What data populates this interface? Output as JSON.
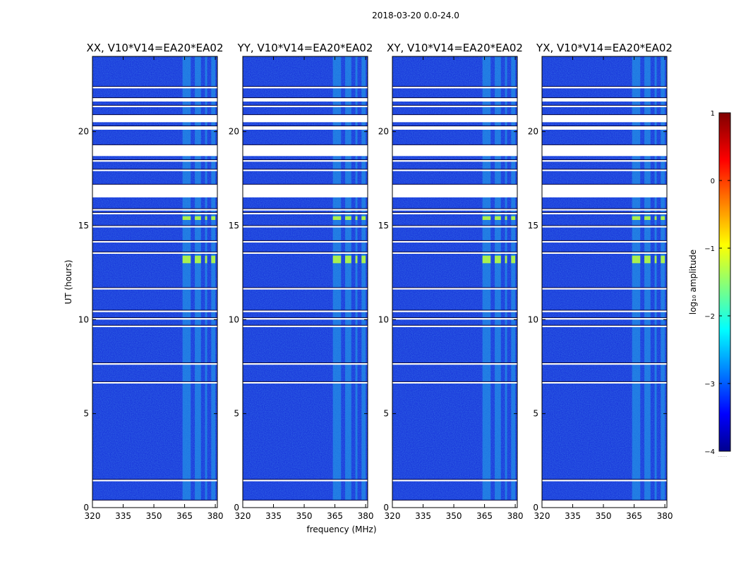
{
  "suptitle": "2018-03-20 0.0-24.0",
  "chart_data": [
    {
      "type": "heatmap",
      "title": "XX, V10*V14=EA20*EA02",
      "xlabel": "",
      "ylabel": "UT (hours)",
      "xlim": [
        320,
        381
      ],
      "ylim": [
        0,
        24
      ],
      "xticks": [
        320,
        335,
        350,
        365,
        380
      ],
      "yticks": [
        0,
        5,
        10,
        15,
        20
      ],
      "colorscale": "jet",
      "clim": [
        -4,
        1
      ],
      "bright_bands_mhz": [
        [
          364,
          368
        ],
        [
          370,
          373
        ],
        [
          375,
          376
        ],
        [
          378,
          380
        ]
      ],
      "strong_rfi_hours": [
        [
          13.0,
          13.4
        ],
        [
          15.3,
          15.5
        ]
      ]
    },
    {
      "type": "heatmap",
      "title": "YY, V10*V14=EA20*EA02",
      "xlabel": "frequency (MHz)",
      "ylabel": "",
      "xlim": [
        320,
        381
      ],
      "ylim": [
        0,
        24
      ],
      "xticks": [
        320,
        335,
        350,
        365,
        380
      ],
      "yticks": [
        0,
        5,
        10,
        15,
        20
      ],
      "colorscale": "jet",
      "clim": [
        -4,
        1
      ],
      "bright_bands_mhz": [
        [
          364,
          368
        ],
        [
          370,
          373
        ],
        [
          375,
          376
        ],
        [
          378,
          380
        ]
      ],
      "strong_rfi_hours": [
        [
          13.0,
          13.4
        ],
        [
          15.3,
          15.5
        ]
      ]
    },
    {
      "type": "heatmap",
      "title": "XY, V10*V14=EA20*EA02",
      "xlabel": "",
      "ylabel": "",
      "xlim": [
        320,
        381
      ],
      "ylim": [
        0,
        24
      ],
      "xticks": [
        320,
        335,
        350,
        365,
        380
      ],
      "yticks": [
        0,
        5,
        10,
        15,
        20
      ],
      "colorscale": "jet",
      "clim": [
        -4,
        1
      ],
      "bright_bands_mhz": [
        [
          364,
          368
        ],
        [
          370,
          373
        ],
        [
          375,
          376
        ],
        [
          378,
          380
        ]
      ],
      "strong_rfi_hours": [
        [
          13.0,
          13.4
        ],
        [
          15.3,
          15.5
        ]
      ]
    },
    {
      "type": "heatmap",
      "title": "YX, V10*V14=EA20*EA02",
      "xlabel": "",
      "ylabel": "",
      "xlim": [
        320,
        381
      ],
      "ylim": [
        0,
        24
      ],
      "xticks": [
        320,
        335,
        350,
        365,
        380
      ],
      "yticks": [
        0,
        5,
        10,
        15,
        20
      ],
      "colorscale": "jet",
      "clim": [
        -4,
        1
      ],
      "bright_bands_mhz": [
        [
          364,
          368
        ],
        [
          370,
          373
        ],
        [
          375,
          376
        ],
        [
          378,
          380
        ]
      ],
      "strong_rfi_hours": [
        [
          13.0,
          13.4
        ],
        [
          15.3,
          15.5
        ]
      ]
    }
  ],
  "flagged_hours": [
    [
      0.0,
      0.4
    ],
    [
      1.4,
      1.5
    ],
    [
      6.6,
      6.7
    ],
    [
      7.6,
      7.7
    ],
    [
      9.6,
      9.7
    ],
    [
      10.0,
      10.1
    ],
    [
      10.4,
      10.5
    ],
    [
      11.6,
      11.7
    ],
    [
      13.5,
      13.6
    ],
    [
      14.1,
      14.2
    ],
    [
      14.9,
      15.0
    ],
    [
      15.6,
      15.7
    ],
    [
      15.8,
      15.9
    ],
    [
      16.5,
      17.2
    ],
    [
      17.9,
      18.0
    ],
    [
      18.4,
      18.5
    ],
    [
      18.7,
      19.3
    ],
    [
      20.1,
      20.3
    ],
    [
      20.5,
      20.9
    ],
    [
      21.3,
      21.4
    ],
    [
      21.6,
      21.8
    ],
    [
      22.3,
      22.4
    ]
  ],
  "colorbar": {
    "label": "log₁₀ amplitude",
    "ticks": [
      1,
      0,
      -1,
      -2,
      -3,
      -4
    ],
    "tick_labels": [
      "1",
      "0",
      "−1",
      "−2",
      "−3",
      "−4"
    ],
    "footer": "......"
  }
}
